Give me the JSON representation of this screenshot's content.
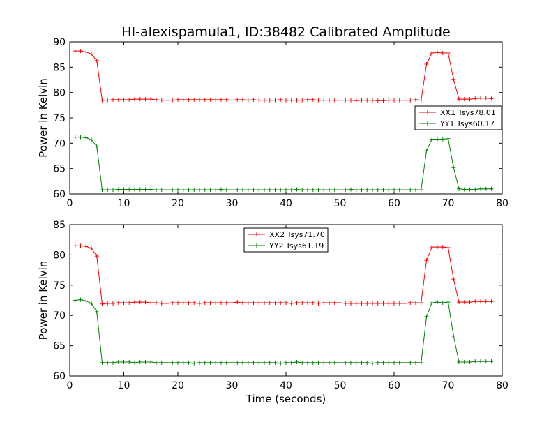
{
  "title": "HI-alexispamula1, ID:38482 Calibrated Amplitude",
  "chart_data": [
    {
      "type": "line",
      "ylabel": "Power in Kelvin",
      "xlabel": "",
      "xlim": [
        0,
        80
      ],
      "ylim": [
        60,
        90
      ],
      "xticks": [
        0,
        10,
        20,
        30,
        40,
        50,
        60,
        70,
        80
      ],
      "yticks": [
        60,
        65,
        70,
        75,
        80,
        85,
        90
      ],
      "grid": false,
      "legend_position": "center-right",
      "marker": "plus",
      "x": [
        1,
        2,
        3,
        4,
        5,
        6,
        7,
        8,
        9,
        10,
        11,
        12,
        13,
        14,
        15,
        16,
        17,
        18,
        19,
        20,
        21,
        22,
        23,
        24,
        25,
        26,
        27,
        28,
        29,
        30,
        31,
        32,
        33,
        34,
        35,
        36,
        37,
        38,
        39,
        40,
        41,
        42,
        43,
        44,
        45,
        46,
        47,
        48,
        49,
        50,
        51,
        52,
        53,
        54,
        55,
        56,
        57,
        58,
        59,
        60,
        61,
        62,
        63,
        64,
        65,
        66,
        67,
        68,
        69,
        70,
        71,
        72,
        73,
        74,
        75,
        76,
        77,
        78
      ],
      "series": [
        {
          "name": "XX1 Tsys78.01",
          "color": "#ff0000",
          "values": [
            88.2,
            88.2,
            88.0,
            87.6,
            86.3,
            78.5,
            78.5,
            78.6,
            78.6,
            78.6,
            78.6,
            78.7,
            78.7,
            78.7,
            78.7,
            78.6,
            78.5,
            78.5,
            78.5,
            78.6,
            78.6,
            78.6,
            78.6,
            78.6,
            78.6,
            78.6,
            78.6,
            78.6,
            78.6,
            78.5,
            78.6,
            78.6,
            78.5,
            78.6,
            78.5,
            78.5,
            78.5,
            78.5,
            78.6,
            78.5,
            78.5,
            78.5,
            78.5,
            78.6,
            78.6,
            78.5,
            78.5,
            78.5,
            78.5,
            78.5,
            78.5,
            78.5,
            78.4,
            78.5,
            78.5,
            78.5,
            78.4,
            78.4,
            78.5,
            78.5,
            78.5,
            78.5,
            78.5,
            78.6,
            78.5,
            85.6,
            87.8,
            87.9,
            87.8,
            87.8,
            82.6,
            78.7,
            78.7,
            78.7,
            78.8,
            78.9,
            78.9,
            78.8
          ]
        },
        {
          "name": "YY1 Tsys60.17",
          "color": "#008000",
          "values": [
            71.2,
            71.2,
            71.1,
            70.7,
            69.4,
            60.8,
            60.8,
            60.8,
            60.9,
            60.9,
            60.9,
            60.9,
            60.9,
            60.9,
            60.9,
            60.8,
            60.8,
            60.8,
            60.8,
            60.8,
            60.8,
            60.8,
            60.8,
            60.8,
            60.8,
            60.8,
            60.8,
            60.9,
            60.8,
            60.8,
            60.8,
            60.8,
            60.8,
            60.8,
            60.8,
            60.8,
            60.8,
            60.8,
            60.8,
            60.8,
            60.8,
            60.9,
            60.8,
            60.8,
            60.8,
            60.8,
            60.8,
            60.8,
            60.8,
            60.8,
            60.8,
            60.9,
            60.8,
            60.8,
            60.8,
            60.8,
            60.8,
            60.8,
            60.8,
            60.8,
            60.8,
            60.8,
            60.8,
            60.8,
            60.8,
            68.5,
            70.8,
            70.8,
            70.8,
            70.9,
            65.2,
            61.0,
            60.9,
            60.9,
            60.9,
            61.0,
            61.0,
            61.0
          ]
        }
      ]
    },
    {
      "type": "line",
      "ylabel": "Power in Kelvin",
      "xlabel": "Time (seconds)",
      "xlim": [
        0,
        80
      ],
      "ylim": [
        60,
        85
      ],
      "xticks": [
        0,
        10,
        20,
        30,
        40,
        50,
        60,
        70,
        80
      ],
      "yticks": [
        60,
        65,
        70,
        75,
        80,
        85
      ],
      "grid": false,
      "legend_position": "top-center",
      "marker": "plus",
      "x": [
        1,
        2,
        3,
        4,
        5,
        6,
        7,
        8,
        9,
        10,
        11,
        12,
        13,
        14,
        15,
        16,
        17,
        18,
        19,
        20,
        21,
        22,
        23,
        24,
        25,
        26,
        27,
        28,
        29,
        30,
        31,
        32,
        33,
        34,
        35,
        36,
        37,
        38,
        39,
        40,
        41,
        42,
        43,
        44,
        45,
        46,
        47,
        48,
        49,
        50,
        51,
        52,
        53,
        54,
        55,
        56,
        57,
        58,
        59,
        60,
        61,
        62,
        63,
        64,
        65,
        66,
        67,
        68,
        69,
        70,
        71,
        72,
        73,
        74,
        75,
        76,
        77,
        78
      ],
      "series": [
        {
          "name": "XX2 Tsys71.70",
          "color": "#ff0000",
          "values": [
            81.5,
            81.5,
            81.4,
            81.1,
            79.8,
            71.9,
            72.0,
            72.0,
            72.1,
            72.1,
            72.1,
            72.2,
            72.2,
            72.2,
            72.1,
            72.1,
            72.0,
            72.0,
            72.1,
            72.1,
            72.1,
            72.1,
            72.1,
            72.0,
            72.1,
            72.1,
            72.1,
            72.1,
            72.1,
            72.1,
            72.2,
            72.1,
            72.1,
            72.1,
            72.1,
            72.1,
            72.1,
            72.1,
            72.1,
            72.1,
            72.0,
            72.1,
            72.1,
            72.1,
            72.1,
            72.0,
            72.1,
            72.1,
            72.1,
            72.1,
            72.0,
            72.0,
            72.0,
            72.0,
            72.0,
            72.0,
            72.0,
            72.0,
            72.0,
            72.0,
            72.0,
            72.0,
            72.1,
            72.1,
            72.1,
            79.1,
            81.3,
            81.3,
            81.3,
            81.2,
            76.0,
            72.2,
            72.2,
            72.2,
            72.3,
            72.3,
            72.3,
            72.3
          ]
        },
        {
          "name": "YY2 Tsys61.19",
          "color": "#008000",
          "values": [
            72.5,
            72.6,
            72.4,
            72.0,
            70.6,
            62.2,
            62.2,
            62.2,
            62.3,
            62.3,
            62.3,
            62.2,
            62.3,
            62.3,
            62.3,
            62.2,
            62.2,
            62.2,
            62.2,
            62.2,
            62.2,
            62.2,
            62.1,
            62.2,
            62.2,
            62.2,
            62.2,
            62.2,
            62.2,
            62.2,
            62.2,
            62.2,
            62.2,
            62.2,
            62.2,
            62.2,
            62.2,
            62.2,
            62.1,
            62.2,
            62.2,
            62.3,
            62.2,
            62.2,
            62.2,
            62.2,
            62.2,
            62.2,
            62.2,
            62.2,
            62.2,
            62.2,
            62.2,
            62.2,
            62.2,
            62.1,
            62.2,
            62.2,
            62.2,
            62.2,
            62.2,
            62.2,
            62.2,
            62.2,
            62.2,
            69.8,
            72.1,
            72.2,
            72.1,
            72.2,
            66.6,
            62.3,
            62.3,
            62.3,
            62.4,
            62.4,
            62.4,
            62.4
          ]
        }
      ]
    }
  ]
}
